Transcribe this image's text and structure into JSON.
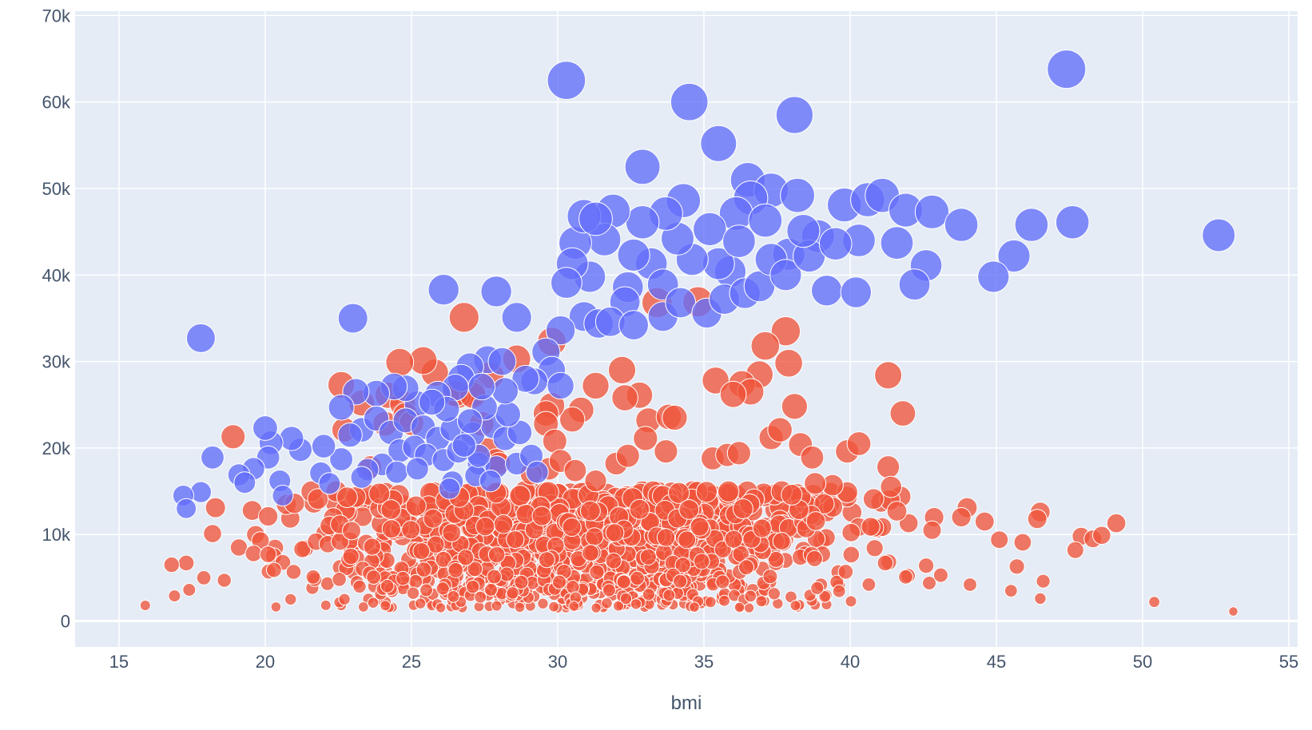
{
  "chart_data": {
    "type": "scatter",
    "title": "",
    "xlabel": "bmi",
    "ylabel": "",
    "xlim": [
      13.5,
      55.3
    ],
    "ylim": [
      -3000,
      70500
    ],
    "x_ticks": [
      15,
      20,
      25,
      30,
      35,
      40,
      45,
      50,
      55
    ],
    "y_ticks": [
      0,
      10000,
      20000,
      30000,
      40000,
      50000,
      60000,
      70000
    ],
    "x_tick_labels": [
      "15",
      "20",
      "25",
      "30",
      "35",
      "40",
      "45",
      "50",
      "55"
    ],
    "y_tick_labels": [
      "0",
      "10k",
      "20k",
      "30k",
      "40k",
      "50k",
      "60k",
      "70k"
    ],
    "grid": true,
    "legend": "none",
    "colors": {
      "blue": "#636efa",
      "red": "#ef553b",
      "plot_bg": "#e5ecf6",
      "grid": "#ffffff",
      "text": "#44546a"
    },
    "series": [
      {
        "color": "#636efa",
        "points": [
          [
            30.3,
            62500
          ],
          [
            34.5,
            60000
          ],
          [
            38.1,
            58500
          ],
          [
            47.4,
            63800
          ],
          [
            32.9,
            52500
          ],
          [
            35.5,
            55200
          ],
          [
            36.5,
            51000
          ],
          [
            37.3,
            49800
          ],
          [
            38.2,
            49200
          ],
          [
            39.8,
            48100
          ],
          [
            40.6,
            48700
          ],
          [
            41.1,
            49200
          ],
          [
            41.9,
            47500
          ],
          [
            42.8,
            47300
          ],
          [
            43.8,
            45800
          ],
          [
            46.2,
            45800
          ],
          [
            47.6,
            46100
          ],
          [
            52.6,
            44600
          ],
          [
            45.6,
            42200
          ],
          [
            44.9,
            39800
          ],
          [
            42.6,
            41100
          ],
          [
            42.2,
            38900
          ],
          [
            41.6,
            43700
          ],
          [
            40.3,
            44000
          ],
          [
            39.2,
            38200
          ],
          [
            40.2,
            38000
          ],
          [
            38.9,
            44500
          ],
          [
            37.9,
            42400
          ],
          [
            36.6,
            48900
          ],
          [
            36.1,
            47100
          ],
          [
            35.9,
            40400
          ],
          [
            35.5,
            41300
          ],
          [
            35.2,
            45300
          ],
          [
            34.6,
            41800
          ],
          [
            34.3,
            48600
          ],
          [
            34.1,
            44200
          ],
          [
            33.7,
            47100
          ],
          [
            33.2,
            41300
          ],
          [
            33.6,
            38900
          ],
          [
            32.9,
            46100
          ],
          [
            32.6,
            42300
          ],
          [
            32.4,
            38600
          ],
          [
            32.3,
            36900
          ],
          [
            31.9,
            47400
          ],
          [
            31.6,
            44100
          ],
          [
            31.1,
            39800
          ],
          [
            30.6,
            43700
          ],
          [
            30.5,
            41300
          ],
          [
            30.3,
            39100
          ],
          [
            30.9,
            46800
          ],
          [
            31.3,
            46500
          ],
          [
            30.9,
            35200
          ],
          [
            31.4,
            34400
          ],
          [
            31.8,
            34600
          ],
          [
            32.6,
            34200
          ],
          [
            33.6,
            35200
          ],
          [
            34.2,
            36800
          ],
          [
            35.1,
            35600
          ],
          [
            35.7,
            37200
          ],
          [
            36.4,
            37900
          ],
          [
            36.9,
            38700
          ],
          [
            37.3,
            41800
          ],
          [
            37.8,
            40000
          ],
          [
            38.6,
            42200
          ],
          [
            39.5,
            43600
          ],
          [
            37.1,
            46300
          ],
          [
            38.4,
            45100
          ],
          [
            36.2,
            43900
          ],
          [
            30.1,
            33600
          ],
          [
            29.6,
            31100
          ],
          [
            29.8,
            29000
          ],
          [
            29.2,
            27700
          ],
          [
            28.6,
            35100
          ],
          [
            27.9,
            38100
          ],
          [
            26.1,
            38300
          ],
          [
            23.0,
            35000
          ],
          [
            17.8,
            32700
          ],
          [
            27.6,
            30200
          ],
          [
            27.0,
            29400
          ],
          [
            26.7,
            28100
          ],
          [
            26.5,
            27000
          ],
          [
            25.9,
            26200
          ],
          [
            25.2,
            25100
          ],
          [
            24.8,
            26900
          ],
          [
            24.4,
            27100
          ],
          [
            23.8,
            26300
          ],
          [
            23.1,
            26500
          ],
          [
            22.6,
            24700
          ],
          [
            23.3,
            22100
          ],
          [
            22.9,
            21500
          ],
          [
            23.8,
            23400
          ],
          [
            24.3,
            21800
          ],
          [
            24.8,
            23200
          ],
          [
            25.4,
            22400
          ],
          [
            25.9,
            21100
          ],
          [
            26.4,
            22200
          ],
          [
            27.1,
            21600
          ],
          [
            27.8,
            22500
          ],
          [
            28.2,
            21100
          ],
          [
            28.7,
            21800
          ],
          [
            28.3,
            23900
          ],
          [
            27.5,
            24700
          ],
          [
            26.2,
            24500
          ],
          [
            25.7,
            25300
          ],
          [
            24.6,
            19700
          ],
          [
            25.1,
            20100
          ],
          [
            25.5,
            19200
          ],
          [
            26.1,
            18600
          ],
          [
            26.6,
            19600
          ],
          [
            27.3,
            18200
          ],
          [
            27.9,
            17800
          ],
          [
            28.6,
            18200
          ],
          [
            29.1,
            19100
          ],
          [
            24.0,
            18100
          ],
          [
            23.5,
            17500
          ],
          [
            24.5,
            17200
          ],
          [
            25.2,
            17600
          ],
          [
            26.4,
            16100
          ],
          [
            27.2,
            16800
          ],
          [
            22.6,
            18700
          ],
          [
            22.0,
            20200
          ],
          [
            21.9,
            17100
          ],
          [
            21.2,
            19800
          ],
          [
            20.9,
            21100
          ],
          [
            20.2,
            20600
          ],
          [
            20.0,
            22300
          ],
          [
            20.1,
            18900
          ],
          [
            19.6,
            17600
          ],
          [
            19.1,
            16900
          ],
          [
            19.3,
            16000
          ],
          [
            18.2,
            18900
          ],
          [
            17.8,
            14900
          ],
          [
            17.2,
            14500
          ],
          [
            17.3,
            13000
          ],
          [
            20.5,
            16200
          ],
          [
            20.6,
            14500
          ],
          [
            22.2,
            15900
          ],
          [
            23.3,
            16600
          ],
          [
            26.3,
            15300
          ],
          [
            27.7,
            16200
          ],
          [
            29.3,
            17200
          ],
          [
            28.9,
            28000
          ],
          [
            28.2,
            26600
          ],
          [
            27.4,
            27100
          ],
          [
            27.3,
            19100
          ],
          [
            26.8,
            20300
          ],
          [
            27.0,
            23100
          ],
          [
            28.1,
            30000
          ],
          [
            30.1,
            27200
          ]
        ]
      },
      {
        "color": "#ef553b",
        "points": [
          [
            26.8,
            35100
          ],
          [
            33.4,
            36800
          ],
          [
            34.8,
            36900
          ],
          [
            29.8,
            32300
          ],
          [
            37.8,
            33500
          ],
          [
            37.1,
            31800
          ],
          [
            37.9,
            29800
          ],
          [
            36.9,
            28500
          ],
          [
            36.3,
            27400
          ],
          [
            35.4,
            27800
          ],
          [
            36.6,
            26500
          ],
          [
            36.0,
            26200
          ],
          [
            38.1,
            24800
          ],
          [
            41.3,
            28400
          ],
          [
            41.8,
            24000
          ],
          [
            33.1,
            23200
          ],
          [
            33.8,
            23600
          ],
          [
            32.8,
            26100
          ],
          [
            32.3,
            25800
          ],
          [
            32.2,
            29000
          ],
          [
            31.3,
            27200
          ],
          [
            30.8,
            24400
          ],
          [
            30.5,
            23300
          ],
          [
            29.8,
            24900
          ],
          [
            29.6,
            24000
          ],
          [
            28.6,
            30300
          ],
          [
            27.7,
            28400
          ],
          [
            27.1,
            26400
          ],
          [
            26.6,
            26100
          ],
          [
            25.8,
            28700
          ],
          [
            25.4,
            30100
          ],
          [
            24.6,
            29900
          ],
          [
            24.2,
            26100
          ],
          [
            24.7,
            25100
          ],
          [
            24.1,
            22800
          ],
          [
            23.3,
            25200
          ],
          [
            22.6,
            27300
          ],
          [
            22.7,
            22100
          ],
          [
            23.6,
            17800
          ],
          [
            24.8,
            23800
          ],
          [
            25.0,
            22900
          ],
          [
            26.5,
            26300
          ],
          [
            27.1,
            26100
          ],
          [
            27.4,
            22800
          ],
          [
            27.6,
            19800
          ],
          [
            27.9,
            18600
          ],
          [
            28.0,
            18200
          ],
          [
            29.6,
            22800
          ],
          [
            29.9,
            20800
          ],
          [
            29.7,
            17600
          ],
          [
            29.1,
            17000
          ],
          [
            30.1,
            18500
          ],
          [
            30.6,
            17400
          ],
          [
            31.3,
            16200
          ],
          [
            32.0,
            18200
          ],
          [
            32.4,
            19100
          ],
          [
            33.0,
            21100
          ],
          [
            33.7,
            19600
          ],
          [
            34.0,
            23500
          ],
          [
            35.3,
            18800
          ],
          [
            35.8,
            19200
          ],
          [
            36.2,
            19400
          ],
          [
            37.3,
            21200
          ],
          [
            37.6,
            22100
          ],
          [
            38.3,
            20400
          ],
          [
            38.7,
            18900
          ],
          [
            39.9,
            19600
          ],
          [
            40.3,
            20500
          ],
          [
            41.3,
            17800
          ],
          [
            41.4,
            15500
          ],
          [
            39.4,
            15700
          ],
          [
            38.8,
            15900
          ],
          [
            38.0,
            14600
          ],
          [
            40.8,
            14100
          ],
          [
            18.9,
            21300
          ],
          [
            18.3,
            13100
          ],
          [
            17.3,
            6700
          ],
          [
            16.8,
            6500
          ],
          [
            15.9,
            1800
          ],
          [
            16.9,
            2900
          ],
          [
            17.4,
            3600
          ],
          [
            17.9,
            5000
          ],
          [
            18.6,
            4700
          ],
          [
            18.2,
            10100
          ],
          [
            19.1,
            8500
          ],
          [
            19.6,
            7800
          ],
          [
            20.1,
            7700
          ],
          [
            20.3,
            5900
          ],
          [
            20.1,
            12100
          ],
          [
            21.0,
            13600
          ],
          [
            21.8,
            14100
          ],
          [
            22.8,
            14300
          ],
          [
            45.1,
            9400
          ],
          [
            45.7,
            6300
          ],
          [
            46.5,
            12600
          ],
          [
            46.4,
            11800
          ],
          [
            47.9,
            9800
          ],
          [
            48.3,
            9500
          ],
          [
            49.1,
            11300
          ],
          [
            47.7,
            8200
          ],
          [
            46.6,
            4600
          ],
          [
            46.5,
            2600
          ],
          [
            50.4,
            2200
          ],
          [
            53.1,
            1100
          ],
          [
            44.6,
            11500
          ],
          [
            44.0,
            13100
          ],
          [
            43.8,
            12000
          ],
          [
            44.1,
            4200
          ],
          [
            45.5,
            3500
          ],
          [
            42.0,
            11300
          ],
          [
            42.8,
            10500
          ],
          [
            43.1,
            5300
          ],
          [
            42.6,
            6400
          ],
          [
            41.2,
            6700
          ],
          [
            41.6,
            12700
          ],
          [
            40.7,
            10900
          ],
          [
            41.9,
            5100
          ],
          [
            45.9,
            9100
          ],
          [
            48.6,
            9900
          ]
        ],
        "cloud": {
          "xmin": 18.0,
          "xmax": 44.0,
          "ymin": 1500,
          "ymax": 15000,
          "count": 1250
        }
      }
    ]
  }
}
